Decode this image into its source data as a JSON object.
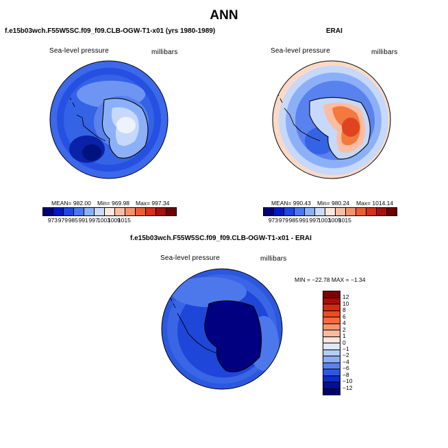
{
  "figure": {
    "title": "ANN"
  },
  "panels": [
    {
      "id": "model",
      "title": "f.e15b03wch.F55W5SC.f09_f09.CLB-OGW-T1-x01 (yrs 1980-1989)",
      "variable": "Sea-level pressure",
      "units": "millibars",
      "stats": {
        "mean": "MEAN= 982.00",
        "min": "Min= 969.98",
        "max": "Max= 997.34"
      }
    },
    {
      "id": "obs",
      "title": "ERAI",
      "variable": "Sea-level pressure",
      "units": "millibars",
      "stats": {
        "mean": "MEAN= 990.43",
        "min": "Min= 980.24",
        "max": "Max= 1014.14"
      }
    },
    {
      "id": "diff",
      "title": "f.e15b03wch.F55W5SC.f09_f09.CLB-OGW-T1-x01 - ERAI",
      "variable": "Sea-level pressure",
      "units": "millibars",
      "stats": {
        "minmax": "MIN = −22.78  MAX = −1.34"
      }
    }
  ],
  "colorbars": {
    "abs_ticks": [
      "973",
      "979",
      "985",
      "991",
      "997",
      "1003",
      "1009",
      "1015"
    ],
    "abs_colors": [
      "#00007a",
      "#0018c8",
      "#1e46e8",
      "#4a78f2",
      "#8cb0f8",
      "#c8dcfc",
      "#fde6dc",
      "#fbbda2",
      "#f7916c",
      "#ee5c34",
      "#d8301a",
      "#a81208",
      "#6e0000"
    ],
    "diff_ticks": [
      "12",
      "10",
      "8",
      "6",
      "4",
      "2",
      "1",
      "0",
      "−1",
      "−2",
      "−4",
      "−6",
      "−8",
      "−10",
      "−12"
    ],
    "diff_colors": [
      "#800000",
      "#a80d06",
      "#d02a12",
      "#ec4b20",
      "#f56a3e",
      "#f89470",
      "#fbbaa0",
      "#fde4d8",
      "#dce8fc",
      "#b4ccf8",
      "#8cacf2",
      "#5a82ea",
      "#2c58e0",
      "#0c2cc8",
      "#00109a",
      "#000073"
    ]
  },
  "colors": {
    "deep_blue": "#0018b0",
    "mid_blue": "#2d5ae6",
    "light_blue": "#6f95f3",
    "pale_blue": "#c6d8fb",
    "white": "#f4f6fd",
    "peach": "#fbd9c6",
    "orange": "#f4793f",
    "red": "#d8361c",
    "navy": "#00008c"
  }
}
